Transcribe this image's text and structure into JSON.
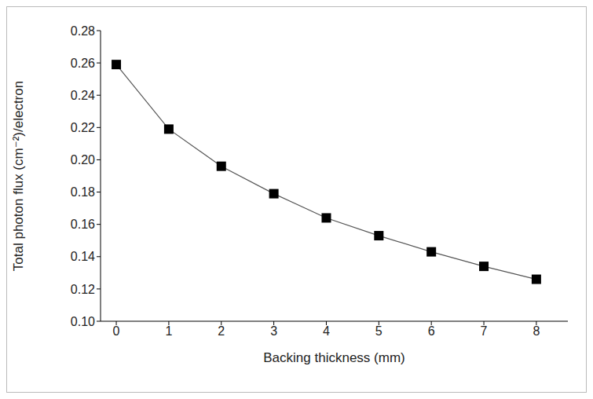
{
  "chart_data": {
    "type": "line",
    "x_label": "Backing thickness (mm)",
    "y_label": "Total photon flux (cm⁻²)/electron",
    "x": [
      0,
      1,
      2,
      3,
      4,
      5,
      6,
      7,
      8
    ],
    "values": [
      0.259,
      0.219,
      0.196,
      0.179,
      0.164,
      0.153,
      0.143,
      0.134,
      0.126
    ],
    "color": "#555555",
    "marker": "square",
    "line_style": "solid",
    "xlim": [
      -0.3,
      8.6
    ],
    "xticks": [
      0,
      1,
      2,
      3,
      4,
      5,
      6,
      7,
      8
    ],
    "ylim": [
      0.1,
      0.28
    ],
    "yticks": [
      {
        "value": 0.1,
        "label": "0.10"
      },
      0.12,
      0.14,
      0.16,
      0.18,
      {
        "value": 0.2,
        "label": "0.20"
      },
      0.22,
      0.24,
      0.26,
      0.28
    ],
    "grid": false
  }
}
